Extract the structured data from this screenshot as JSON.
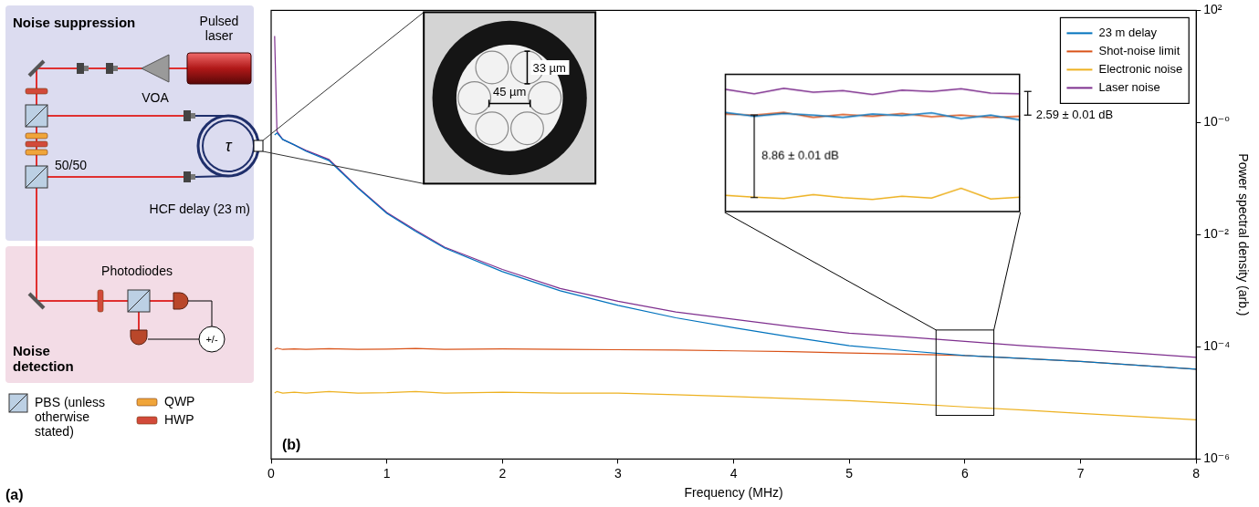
{
  "chart_data": {
    "type": "line",
    "panel_label": "(b)",
    "x_label": "Frequency (MHz)",
    "y_label": "Power spectral density (arb.)",
    "log": "y",
    "grid": false,
    "legend": "upper right",
    "xlim": [
      0,
      8
    ],
    "xticks": [
      0,
      1,
      2,
      3,
      4,
      5,
      6,
      7,
      8
    ],
    "ylim": [
      1e-06,
      100
    ],
    "yticks": [
      {
        "value": 100,
        "label": "10²"
      },
      {
        "value": 1,
        "label": "10⁻⁰"
      },
      {
        "value": 0.01,
        "label": "10⁻²"
      },
      {
        "value": 0.0001,
        "label": "10⁻⁴"
      },
      {
        "value": 1e-06,
        "label": "10⁻⁶"
      }
    ],
    "x": [
      0.03,
      0.05,
      0.1,
      0.2,
      0.3,
      0.5,
      0.75,
      1,
      1.25,
      1.5,
      2,
      2.5,
      3,
      3.5,
      4,
      4.5,
      5,
      5.5,
      6,
      6.5,
      7,
      7.5,
      8
    ],
    "series": [
      {
        "name": "23 m delay",
        "color": "#0072BD",
        "values": [
          0.6,
          0.65,
          0.5,
          0.4,
          0.31,
          0.21,
          0.068,
          0.024,
          0.0115,
          0.0058,
          0.0022,
          0.001,
          0.00055,
          0.00033,
          0.00022,
          0.00015,
          0.000105,
          8.5e-05,
          7e-05,
          6.2e-05,
          5.5e-05,
          4.7e-05,
          4e-05
        ]
      },
      {
        "name": "Shot-noise limit",
        "color": "#D95319",
        "values": [
          9e-05,
          9.5e-05,
          9e-05,
          9.2e-05,
          9e-05,
          9.3e-05,
          9e-05,
          9.1e-05,
          9.4e-05,
          9e-05,
          9.2e-05,
          9e-05,
          8.9e-05,
          8.8e-05,
          8.5e-05,
          8.2e-05,
          7.8e-05,
          7.4e-05,
          7e-05,
          6.2e-05,
          5.5e-05,
          4.7e-05,
          4e-05
        ]
      },
      {
        "name": "Electronic noise",
        "color": "#EDB120",
        "values": [
          1.5e-05,
          1.6e-05,
          1.5e-05,
          1.55e-05,
          1.5e-05,
          1.6e-05,
          1.5e-05,
          1.52e-05,
          1.6e-05,
          1.5e-05,
          1.55e-05,
          1.5e-05,
          1.5e-05,
          1.4e-05,
          1.3e-05,
          1.2e-05,
          1.1e-05,
          9.7e-06,
          8.5e-06,
          7.5e-06,
          6.5e-06,
          5.7e-06,
          5e-06
        ]
      },
      {
        "name": "Laser noise",
        "color": "#7E2F8E",
        "values": [
          35,
          0.7,
          0.5,
          0.4,
          0.32,
          0.22,
          0.07,
          0.025,
          0.012,
          0.006,
          0.0024,
          0.0011,
          0.00065,
          0.00042,
          0.00031,
          0.00023,
          0.000176,
          0.00015,
          0.000125,
          0.000105,
          9e-05,
          7.7e-05,
          6.5e-05
        ]
      }
    ],
    "inset": {
      "type": "line",
      "log": "y",
      "tick_labels": false,
      "xlim": [
        5.75,
        6.25
      ],
      "ylim": [
        6e-06,
        0.0002
      ],
      "x": [
        5.75,
        5.8,
        5.85,
        5.9,
        5.95,
        6,
        6.05,
        6.1,
        6.15,
        6.2,
        6.25
      ],
      "series": [
        {
          "color": "#7E2F8E",
          "values": [
            0.000135,
            0.00012,
            0.000138,
            0.000125,
            0.00013,
            0.000118,
            0.000132,
            0.000127,
            0.000136,
            0.000122,
            0.00012
          ]
        },
        {
          "color": "#0072BD",
          "values": [
            7.5e-05,
            6.8e-05,
            7.3e-05,
            7e-05,
            6.6e-05,
            7.2e-05,
            6.9e-05,
            7.4e-05,
            6.4e-05,
            7e-05,
            6.2e-05
          ]
        },
        {
          "color": "#D95319",
          "values": [
            7.2e-05,
            7e-05,
            7.5e-05,
            6.6e-05,
            7.1e-05,
            6.8e-05,
            7.3e-05,
            6.7e-05,
            7e-05,
            6.6e-05,
            6.8e-05
          ]
        },
        {
          "color": "#EDB120",
          "values": [
            9.2e-06,
            8.8e-06,
            8.5e-06,
            9.4e-06,
            8.7e-06,
            8.3e-06,
            9e-06,
            8.6e-06,
            1.1e-05,
            8.4e-06,
            8.8e-06
          ]
        }
      ],
      "annotations": [
        {
          "text": "8.86 ± 0.01 dB",
          "from": 8.7e-06,
          "to": 7e-05
        },
        {
          "text": "2.59 ± 0.01 dB",
          "from": 7e-05,
          "to": 0.000128
        }
      ]
    }
  },
  "fiber_image": {
    "labels": [
      "33 µm",
      "45 µm"
    ]
  },
  "diagram": {
    "panel_label": "(a)",
    "groups": [
      "Noise suppression",
      "Noise detection"
    ],
    "labels": {
      "laser": "Pulsed laser",
      "voa": "VOA",
      "splitter": "50/50",
      "delay": "HCF delay (23 m)",
      "delay_symbol": "τ",
      "detectors": "Photodiodes",
      "subtract": "+/-"
    },
    "key": {
      "pbs": "PBS (unless otherwise stated)",
      "qwp": "QWP",
      "hwp": "HWP"
    }
  }
}
